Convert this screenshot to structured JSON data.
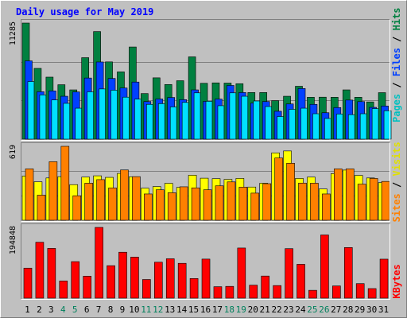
{
  "chart_data": {
    "type": "bar",
    "title": "Daily usage for May 2019",
    "categories": [
      "1",
      "2",
      "3",
      "4",
      "5",
      "6",
      "7",
      "8",
      "9",
      "10",
      "11",
      "12",
      "13",
      "14",
      "15",
      "16",
      "17",
      "18",
      "19",
      "20",
      "21",
      "22",
      "23",
      "24",
      "25",
      "26",
      "27",
      "28",
      "29",
      "30",
      "31"
    ],
    "weekend_days": [
      "4",
      "5",
      "11",
      "12",
      "18",
      "19",
      "25",
      "26"
    ],
    "panels": [
      {
        "id": "hits",
        "max_label": "11285",
        "ylim": [
          0,
          11285
        ],
        "series": [
          {
            "name": "Hits",
            "color": "#008040",
            "values": [
              11285,
              6880,
              6030,
              5290,
              4790,
              7920,
              10460,
              7510,
              6540,
              8960,
              4430,
              5960,
              5310,
              5680,
              8000,
              5430,
              5470,
              5450,
              5390,
              4530,
              4530,
              3740,
              4170,
              5140,
              4070,
              4080,
              4070,
              4790,
              4070,
              3620,
              4520
            ]
          },
          {
            "name": "Files",
            "color": "#0040ff",
            "values": [
              7610,
              4610,
              4690,
              4170,
              4590,
              5940,
              7500,
              5900,
              4970,
              5550,
              3660,
              3900,
              4050,
              3840,
              4790,
              3670,
              3890,
              5220,
              4530,
              3500,
              3660,
              2710,
              3420,
              4920,
              3380,
              2570,
              3070,
              3800,
              3650,
              3090,
              3220
            ]
          },
          {
            "name": "Pages",
            "color": "#00e0ff",
            "values": [
              5600,
              4300,
              3810,
              3480,
              3010,
              4600,
              4880,
              4760,
              4080,
              3890,
              3380,
              3450,
              3130,
              3570,
              4500,
              3680,
              3250,
              4500,
              4170,
              3710,
              3170,
              2200,
              2900,
              3010,
              2470,
              2010,
              2440,
              2380,
              2470,
              2970,
              2760
            ]
          }
        ]
      },
      {
        "id": "visits",
        "max_label": "619",
        "ylim": [
          0,
          619
        ],
        "series": [
          {
            "name": "Visits",
            "color": "#ffff00",
            "values": [
              370,
              322,
              354,
              365,
              298,
              361,
              372,
              359,
              392,
              364,
              268,
              282,
              309,
              275,
              377,
              352,
              348,
              342,
              350,
              278,
              310,
              564,
              580,
              350,
              361,
              262,
              390,
              420,
              375,
              354,
              315
            ]
          },
          {
            "name": "Sites",
            "color": "#ff8000",
            "values": [
              430,
              210,
              490,
              619,
              205,
              310,
              340,
              270,
              421,
              365,
              220,
              255,
              230,
              280,
              271,
              255,
              288,
              321,
              277,
              227,
              306,
              521,
              477,
              311,
              310,
              220,
              430,
              430,
              302,
              350,
              325
            ]
          }
        ]
      },
      {
        "id": "kbytes",
        "max_label": "194848",
        "ylim": [
          0,
          194848
        ],
        "series": [
          {
            "name": "KBytes",
            "color": "#ff0000",
            "values": [
              82640,
              154000,
              137030,
              47210,
              100620,
              60430,
              194848,
              89470,
              126500,
              113020,
              51390,
              99040,
              108470,
              95880,
              54070,
              107570,
              31520,
              32430,
              138080,
              35770,
              60900,
              34700,
              136380,
              93170,
              21580,
              174040,
              33650,
              139410,
              40010,
              26360,
              107380
            ]
          }
        ]
      }
    ],
    "legend_labels": [
      {
        "id": "pages",
        "text": "Pages",
        "color": "#00c0c0"
      },
      {
        "id": "sep1",
        "text": " / ",
        "color": "#000000"
      },
      {
        "id": "files",
        "text": "Files",
        "color": "#0040ff"
      },
      {
        "id": "sep2",
        "text": " / ",
        "color": "#000000"
      },
      {
        "id": "hits",
        "text": "Hits",
        "color": "#008040"
      }
    ],
    "legend_labels_2": [
      {
        "id": "sites",
        "text": "Sites",
        "color": "#ff8000"
      },
      {
        "id": "sep3",
        "text": " / ",
        "color": "#000000"
      },
      {
        "id": "visits",
        "text": "Visits",
        "color": "#e0e000"
      }
    ],
    "legend_labels_3": [
      {
        "id": "kbytes",
        "text": "KBytes",
        "color": "#ff0000"
      }
    ],
    "colors": {
      "background": "#c0c0c0",
      "title": "#0000ff",
      "weekday_label": "#000000",
      "weekend_label": "#00805c",
      "grid": "#808080"
    }
  }
}
